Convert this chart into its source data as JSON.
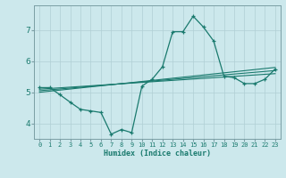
{
  "title": "",
  "xlabel": "Humidex (Indice chaleur)",
  "ylabel": "",
  "bg_color": "#cce8ec",
  "line_color": "#1a7a6e",
  "grid_color": "#b0cfd4",
  "xlim": [
    -0.5,
    23.5
  ],
  "ylim": [
    3.5,
    7.8
  ],
  "xticks": [
    0,
    1,
    2,
    3,
    4,
    5,
    6,
    7,
    8,
    9,
    10,
    11,
    12,
    13,
    14,
    15,
    16,
    17,
    18,
    19,
    20,
    21,
    22,
    23
  ],
  "yticks": [
    4,
    5,
    6,
    7
  ],
  "curve1_x": [
    0,
    1,
    2,
    3,
    4,
    5,
    6,
    7,
    8,
    9,
    10,
    11,
    12,
    13,
    14,
    15,
    16,
    17,
    18,
    19,
    20,
    21,
    22,
    23
  ],
  "curve1_y": [
    5.15,
    5.15,
    4.92,
    4.68,
    4.45,
    4.4,
    4.35,
    3.65,
    3.8,
    3.7,
    5.2,
    5.42,
    5.82,
    6.95,
    6.95,
    7.45,
    7.1,
    6.65,
    5.52,
    5.47,
    5.28,
    5.28,
    5.42,
    5.75
  ],
  "line2_x": [
    0,
    23
  ],
  "line2_y": [
    5.1,
    5.6
  ],
  "line3_x": [
    0,
    23
  ],
  "line3_y": [
    5.05,
    5.7
  ],
  "line4_x": [
    0,
    23
  ],
  "line4_y": [
    5.0,
    5.8
  ],
  "tick_fontsize": 5.0,
  "xlabel_fontsize": 6.0
}
